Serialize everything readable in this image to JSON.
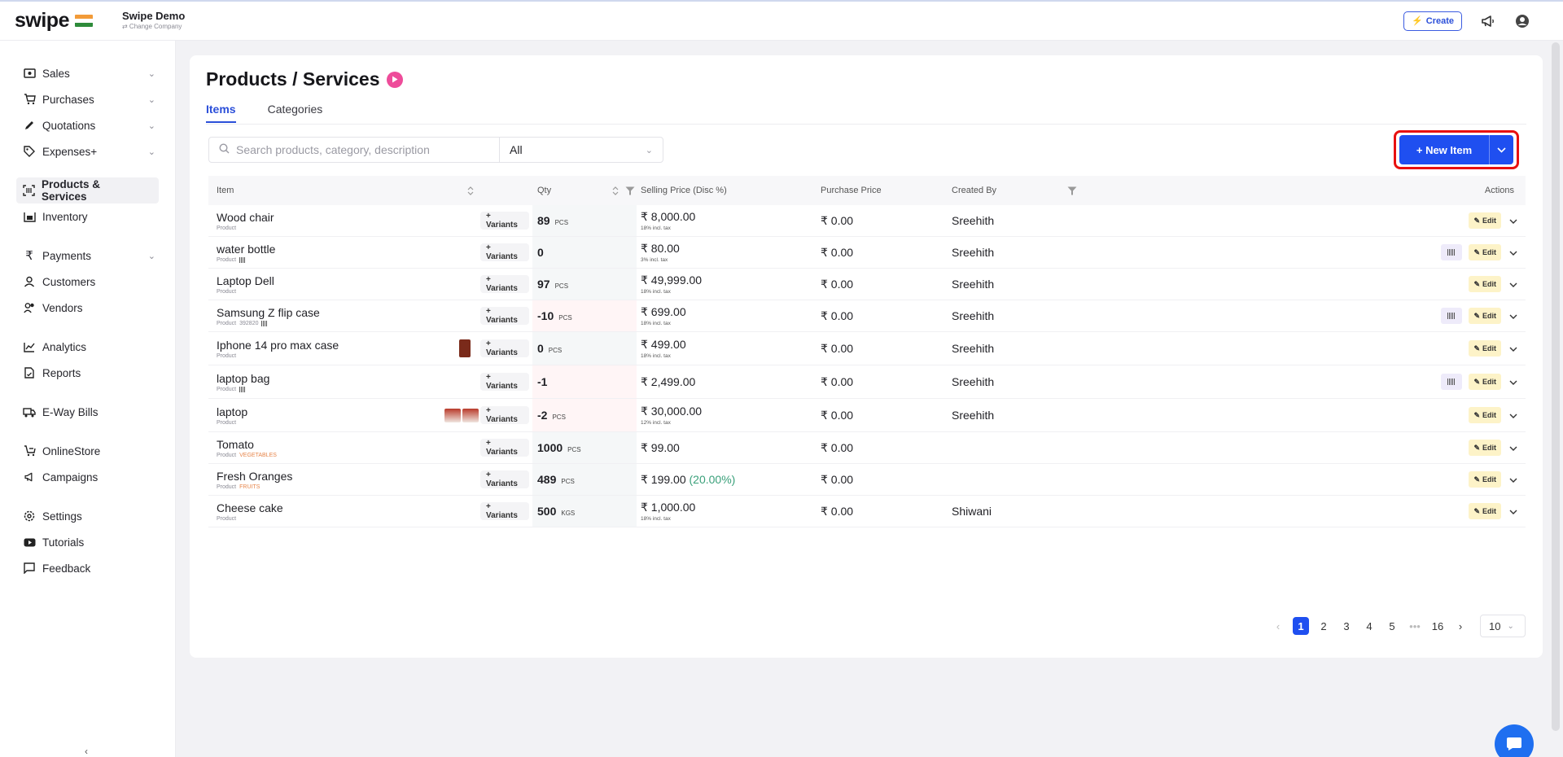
{
  "app": {
    "logo_text": "swipe",
    "company_name": "Swipe Demo",
    "change_company": "⇄ Change Company",
    "create_label": "Create"
  },
  "sidebar": {
    "items": [
      {
        "label": "Sales",
        "icon": "cash-icon",
        "chevron": true
      },
      {
        "label": "Purchases",
        "icon": "cart-icon",
        "chevron": true
      },
      {
        "label": "Quotations",
        "icon": "pen-icon",
        "chevron": true
      },
      {
        "label": "Expenses+",
        "icon": "tag-icon",
        "chevron": true
      },
      {
        "label": "Products & Services",
        "icon": "products-icon",
        "active": true
      },
      {
        "label": "Inventory",
        "icon": "inventory-icon"
      },
      {
        "label": "Payments",
        "icon": "rupee-icon",
        "chevron": true
      },
      {
        "label": "Customers",
        "icon": "user-icon"
      },
      {
        "label": "Vendors",
        "icon": "users-icon"
      },
      {
        "label": "Analytics",
        "icon": "analytics-icon"
      },
      {
        "label": "Reports",
        "icon": "report-icon"
      },
      {
        "label": "E-Way Bills",
        "icon": "truck-icon"
      },
      {
        "label": "OnlineStore",
        "icon": "store-icon"
      },
      {
        "label": "Campaigns",
        "icon": "megaphone-icon"
      },
      {
        "label": "Settings",
        "icon": "gear-icon"
      },
      {
        "label": "Tutorials",
        "icon": "youtube-icon"
      },
      {
        "label": "Feedback",
        "icon": "chat-icon"
      }
    ]
  },
  "page": {
    "title": "Products / Services",
    "tabs": [
      "Items",
      "Categories"
    ],
    "search_placeholder": "Search products, category, description",
    "filter_value": "All",
    "new_item_label": "+ New Item"
  },
  "table": {
    "headers": {
      "item": "Item",
      "qty": "Qty",
      "selling_price": "Selling Price (Disc %)",
      "purchase_price": "Purchase Price",
      "created_by": "Created By",
      "actions": "Actions"
    },
    "variants_label": "+ Variants",
    "edit_label": "Edit",
    "rows": [
      {
        "name": "Wood chair",
        "type": "Product",
        "code": "",
        "category": "",
        "barcode": false,
        "qty": "89",
        "unit": "PCS",
        "neg": false,
        "price": "₹ 8,000.00",
        "disc": "",
        "tax": "18% incl. tax",
        "purchase": "₹ 0.00",
        "created_by": "Sreehith",
        "has_barcode_btn": false,
        "thumb": ""
      },
      {
        "name": "water bottle",
        "type": "Product",
        "code": "",
        "category": "",
        "barcode": true,
        "qty": "0",
        "unit": "",
        "neg": false,
        "price": "₹ 80.00",
        "disc": "",
        "tax": "3% incl. tax",
        "purchase": "₹ 0.00",
        "created_by": "Sreehith",
        "has_barcode_btn": true,
        "thumb": ""
      },
      {
        "name": "Laptop Dell",
        "type": "Product",
        "code": "",
        "category": "",
        "barcode": false,
        "qty": "97",
        "unit": "PCS",
        "neg": false,
        "price": "₹ 49,999.00",
        "disc": "",
        "tax": "18% incl. tax",
        "purchase": "₹ 0.00",
        "created_by": "Sreehith",
        "has_barcode_btn": false,
        "thumb": ""
      },
      {
        "name": "Samsung Z flip case",
        "type": "Product",
        "code": "392820",
        "category": "",
        "barcode": true,
        "qty": "-10",
        "unit": "PCS",
        "neg": true,
        "price": "₹ 699.00",
        "disc": "",
        "tax": "18% incl. tax",
        "purchase": "₹ 0.00",
        "created_by": "Sreehith",
        "has_barcode_btn": true,
        "thumb": ""
      },
      {
        "name": "Iphone 14 pro max case",
        "type": "Product",
        "code": "",
        "category": "",
        "barcode": false,
        "qty": "0",
        "unit": "PCS",
        "neg": false,
        "price": "₹ 499.00",
        "disc": "",
        "tax": "18% incl. tax",
        "purchase": "₹ 0.00",
        "created_by": "Sreehith",
        "has_barcode_btn": false,
        "thumb": "single"
      },
      {
        "name": "laptop bag",
        "type": "Product",
        "code": "",
        "category": "",
        "barcode": true,
        "qty": "-1",
        "unit": "",
        "neg": true,
        "price": "₹ 2,499.00",
        "disc": "",
        "tax": "",
        "purchase": "₹ 0.00",
        "created_by": "Sreehith",
        "has_barcode_btn": true,
        "thumb": ""
      },
      {
        "name": "laptop",
        "type": "Product",
        "code": "",
        "category": "",
        "barcode": false,
        "qty": "-2",
        "unit": "PCS",
        "neg": true,
        "price": "₹ 30,000.00",
        "disc": "",
        "tax": "12% incl. tax",
        "purchase": "₹ 0.00",
        "created_by": "Sreehith",
        "has_barcode_btn": false,
        "thumb": "double"
      },
      {
        "name": "Tomato",
        "type": "Product",
        "code": "",
        "category": "VEGETABLES",
        "barcode": false,
        "qty": "1000",
        "unit": "PCS",
        "neg": false,
        "price": "₹ 99.00",
        "disc": "",
        "tax": "",
        "purchase": "₹ 0.00",
        "created_by": "",
        "has_barcode_btn": false,
        "thumb": ""
      },
      {
        "name": "Fresh Oranges",
        "type": "Product",
        "code": "",
        "category": "FRUITS",
        "barcode": false,
        "qty": "489",
        "unit": "PCS",
        "neg": false,
        "price": "₹ 199.00",
        "disc": "(20.00%)",
        "tax": "",
        "purchase": "₹ 0.00",
        "created_by": "",
        "has_barcode_btn": false,
        "thumb": ""
      },
      {
        "name": "Cheese cake",
        "type": "Product",
        "code": "",
        "category": "",
        "barcode": false,
        "qty": "500",
        "unit": "KGS",
        "neg": false,
        "price": "₹ 1,000.00",
        "disc": "",
        "tax": "18% incl. tax",
        "purchase": "₹ 0.00",
        "created_by": "Shiwani",
        "has_barcode_btn": false,
        "thumb": ""
      }
    ]
  },
  "pagination": {
    "pages": [
      "1",
      "2",
      "3",
      "4",
      "5"
    ],
    "ellipsis": "•••",
    "last": "16",
    "page_size": "10"
  },
  "colors": {
    "accent": "#1f4ff0",
    "highlight_border": "#e81010",
    "edit_bg": "#fdf3c8",
    "discount": "#3aa07a"
  }
}
